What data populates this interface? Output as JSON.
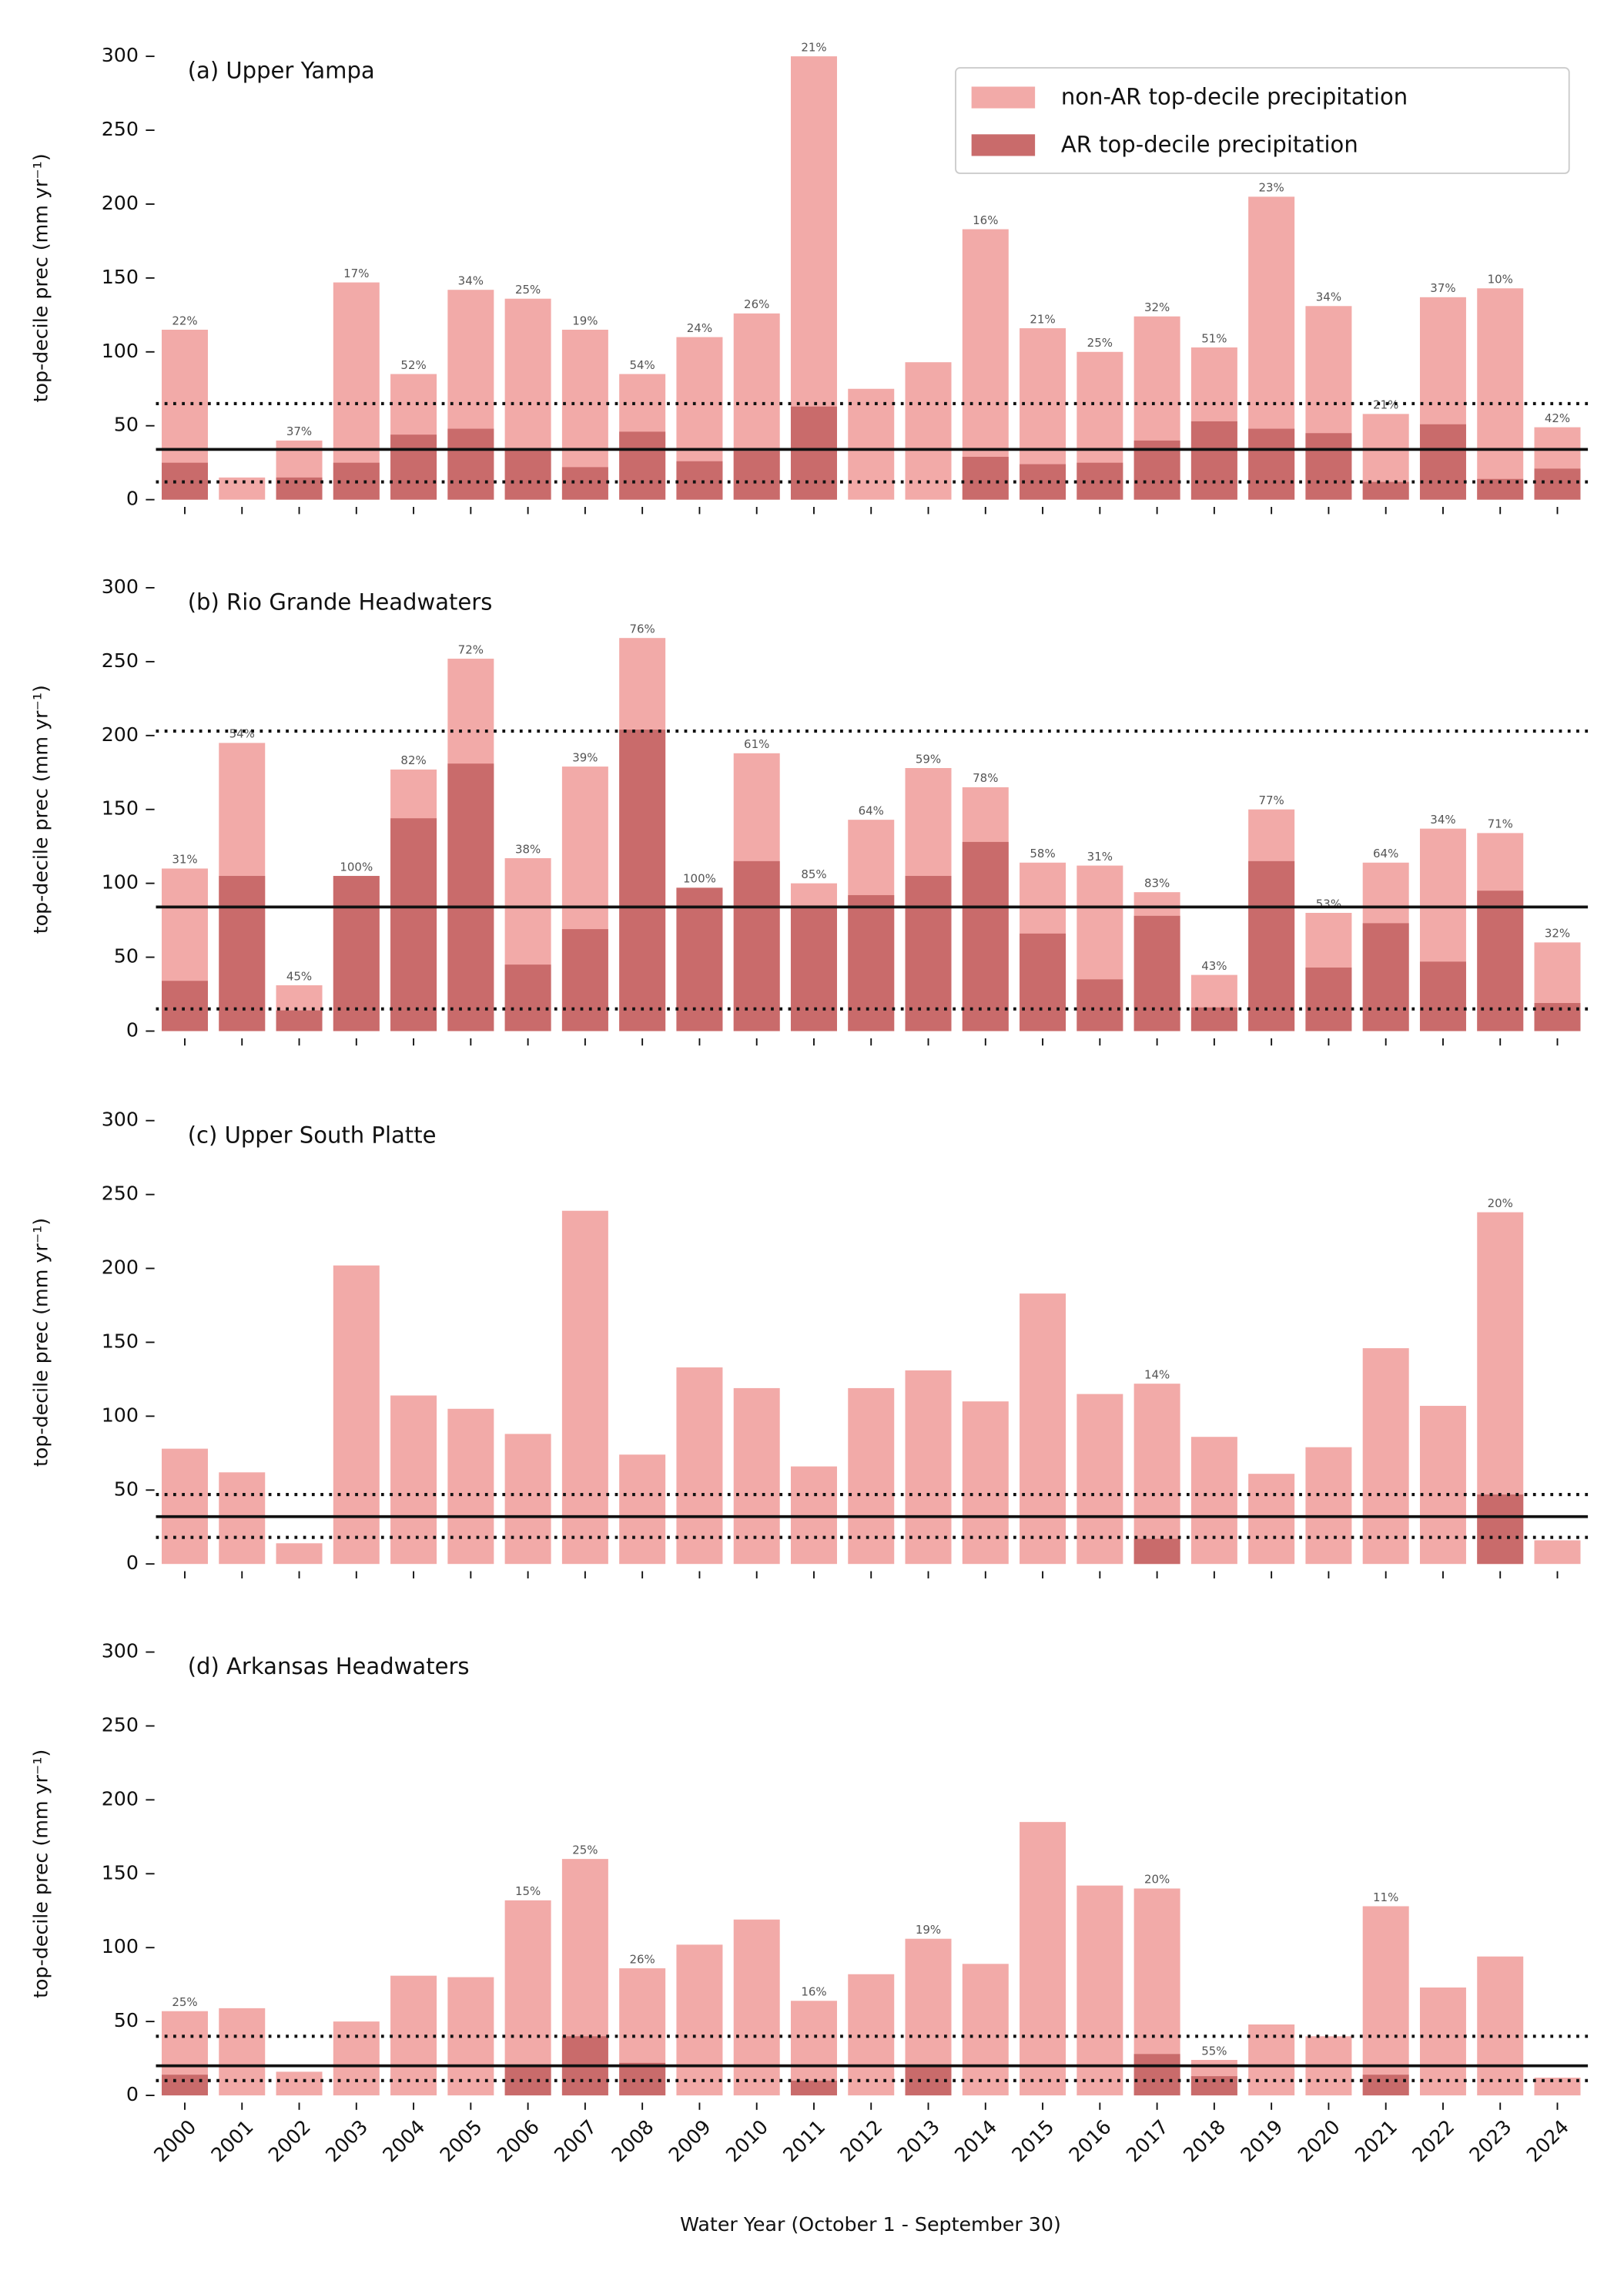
{
  "chart_data": [
    {
      "type": "bar",
      "title": "(a) Upper Yampa",
      "ylabel": "top-decile prec (mm yr⁻¹)",
      "ylim": [
        0,
        300
      ],
      "yticks": [
        0,
        50,
        100,
        150,
        200,
        250,
        300
      ],
      "legend": "upper right",
      "series": [
        {
          "name": "non-AR top-decile precipitation",
          "color": "#f2aaa8",
          "values": [
            115,
            15,
            40,
            147,
            85,
            142,
            136,
            115,
            85,
            110,
            126,
            300,
            75,
            93,
            183,
            116,
            100,
            124,
            103,
            205,
            131,
            58,
            137,
            143,
            49
          ]
        },
        {
          "name": "AR top-decile precipitation",
          "color": "#c96b6b",
          "values": [
            25,
            0,
            15,
            25,
            44,
            48,
            34,
            22,
            46,
            26,
            33,
            63,
            0,
            0,
            29,
            24,
            25,
            40,
            53,
            48,
            45,
            12,
            51,
            14,
            21
          ]
        }
      ],
      "bar_labels": [
        "22%",
        null,
        "37%",
        "17%",
        "52%",
        "34%",
        "25%",
        "19%",
        "54%",
        "24%",
        "26%",
        "21%",
        null,
        null,
        "16%",
        "21%",
        "25%",
        "32%",
        "51%",
        "23%",
        "34%",
        "21%",
        "37%",
        "10%",
        "42%"
      ],
      "hlines": [
        {
          "value": 65,
          "style": "dotted"
        },
        {
          "value": 34,
          "style": "solid"
        },
        {
          "value": 12,
          "style": "dotted"
        }
      ]
    },
    {
      "type": "bar",
      "title": "(b) Rio Grande Headwaters",
      "ylabel": "top-decile prec (mm yr⁻¹)",
      "ylim": [
        0,
        300
      ],
      "yticks": [
        0,
        50,
        100,
        150,
        200,
        250,
        300
      ],
      "series": [
        {
          "color": "#f2aaa8",
          "values": [
            110,
            195,
            31,
            105,
            177,
            252,
            117,
            179,
            266,
            97,
            188,
            100,
            143,
            178,
            165,
            114,
            112,
            94,
            38,
            150,
            80,
            114,
            137,
            134,
            60
          ]
        },
        {
          "color": "#c96b6b",
          "values": [
            34,
            105,
            14,
            105,
            144,
            181,
            45,
            69,
            204,
            97,
            115,
            85,
            92,
            105,
            128,
            66,
            35,
            78,
            16,
            115,
            43,
            73,
            47,
            95,
            19
          ]
        }
      ],
      "bar_labels": [
        "31%",
        "54%",
        "45%",
        "100%",
        "82%",
        "72%",
        "38%",
        "39%",
        "76%",
        "100%",
        "61%",
        "85%",
        "64%",
        "59%",
        "78%",
        "58%",
        "31%",
        "83%",
        "43%",
        "77%",
        "53%",
        "64%",
        "34%",
        "71%",
        "32%"
      ],
      "hlines": [
        {
          "value": 203,
          "style": "dotted"
        },
        {
          "value": 84,
          "style": "solid"
        },
        {
          "value": 15,
          "style": "dotted"
        }
      ]
    },
    {
      "type": "bar",
      "title": "(c) Upper South Platte",
      "ylabel": "top-decile prec (mm yr⁻¹)",
      "ylim": [
        0,
        300
      ],
      "yticks": [
        0,
        50,
        100,
        150,
        200,
        250,
        300
      ],
      "series": [
        {
          "color": "#f2aaa8",
          "values": [
            78,
            62,
            14,
            202,
            114,
            105,
            88,
            239,
            74,
            133,
            119,
            66,
            119,
            131,
            110,
            183,
            115,
            122,
            86,
            61,
            79,
            146,
            107,
            238,
            16
          ]
        },
        {
          "color": "#c96b6b",
          "values": [
            0,
            0,
            0,
            0,
            0,
            0,
            0,
            0,
            0,
            0,
            0,
            0,
            0,
            0,
            0,
            0,
            0,
            17,
            0,
            0,
            0,
            0,
            0,
            47,
            0
          ]
        }
      ],
      "bar_labels": [
        null,
        null,
        null,
        null,
        null,
        null,
        null,
        null,
        null,
        null,
        null,
        null,
        null,
        null,
        null,
        null,
        null,
        "14%",
        null,
        null,
        null,
        null,
        null,
        "20%",
        null
      ],
      "hlines": [
        {
          "value": 47,
          "style": "dotted"
        },
        {
          "value": 32,
          "style": "solid"
        },
        {
          "value": 18,
          "style": "dotted"
        }
      ]
    },
    {
      "type": "bar",
      "title": "(d) Arkansas Headwaters",
      "ylabel": "top-decile prec (mm yr⁻¹)",
      "ylim": [
        0,
        300
      ],
      "yticks": [
        0,
        50,
        100,
        150,
        200,
        250,
        300
      ],
      "xlabel": "Water Year (October 1 - September 30)",
      "categories": [
        "2000",
        "2001",
        "2002",
        "2003",
        "2004",
        "2005",
        "2006",
        "2007",
        "2008",
        "2009",
        "2010",
        "2011",
        "2012",
        "2013",
        "2014",
        "2015",
        "2016",
        "2017",
        "2018",
        "2019",
        "2020",
        "2021",
        "2022",
        "2023",
        "2024"
      ],
      "series": [
        {
          "color": "#f2aaa8",
          "values": [
            57,
            59,
            16,
            50,
            81,
            80,
            132,
            160,
            86,
            102,
            119,
            64,
            82,
            106,
            89,
            185,
            142,
            140,
            24,
            48,
            40,
            128,
            73,
            94,
            12
          ]
        },
        {
          "color": "#c96b6b",
          "values": [
            14,
            0,
            0,
            0,
            0,
            0,
            20,
            40,
            22,
            0,
            0,
            10,
            0,
            20,
            0,
            0,
            0,
            28,
            13,
            0,
            0,
            14,
            0,
            0,
            0
          ]
        }
      ],
      "bar_labels": [
        "25%",
        null,
        null,
        null,
        null,
        null,
        "15%",
        "25%",
        "26%",
        null,
        null,
        "16%",
        null,
        "19%",
        null,
        null,
        null,
        "20%",
        "55%",
        null,
        null,
        "11%",
        null,
        null,
        null
      ],
      "hlines": [
        {
          "value": 40,
          "style": "dotted"
        },
        {
          "value": 20,
          "style": "solid"
        },
        {
          "value": 10,
          "style": "dotted"
        }
      ]
    }
  ]
}
